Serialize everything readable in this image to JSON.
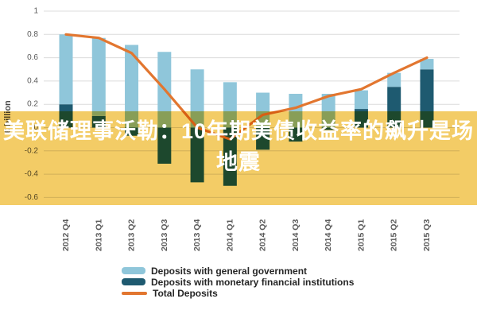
{
  "chart_data": {
    "type": "bar",
    "title": "",
    "xlabel": "",
    "ylabel": "€ billion",
    "ylim": [
      -0.6,
      1
    ],
    "yticks": [
      1,
      0.8,
      0.6,
      0.4,
      0.2,
      0,
      -0.2,
      -0.4,
      -0.6
    ],
    "grid": true,
    "legend_position": "bottom",
    "categories": [
      "2012 Q4",
      "2013 Q1",
      "2013 Q2",
      "2013 Q3",
      "2013 Q4",
      "2014 Q1",
      "2014 Q2",
      "2014 Q3",
      "2014 Q4",
      "2015 Q1",
      "2015 Q2",
      "2015 Q3"
    ],
    "series": [
      {
        "name": "Deposits with general government",
        "type": "bar",
        "values": [
          0.6,
          0.67,
          0.71,
          0.65,
          0.5,
          0.39,
          0.3,
          0.29,
          0.29,
          0.16,
          0.12,
          0.09
        ]
      },
      {
        "name": "Deposits with monetary financial institutions",
        "type": "bar",
        "values": [
          0.2,
          0.1,
          -0.07,
          -0.31,
          -0.47,
          -0.5,
          -0.19,
          -0.12,
          -0.02,
          0.16,
          0.35,
          0.5
        ]
      },
      {
        "name": "Total Deposits",
        "type": "line",
        "values": [
          0.8,
          0.77,
          0.64,
          0.33,
          0.0,
          -0.1,
          0.11,
          0.17,
          0.27,
          0.33,
          0.47,
          0.6
        ]
      }
    ]
  },
  "overlay": {
    "line1": "美联储理事沃勒：10年期美债收益率的飙升是场",
    "line2": "地震"
  },
  "colors": {
    "bar_general_government": "#8FC6DA",
    "bar_monetary_fi": "#1E5A70",
    "total_line": "#E2762F",
    "overlay_background": "#F3CC66",
    "overlay_text": "#FFFFFF",
    "grid_line": "#DCDCDC",
    "axis_text": "#5A5A5A"
  }
}
